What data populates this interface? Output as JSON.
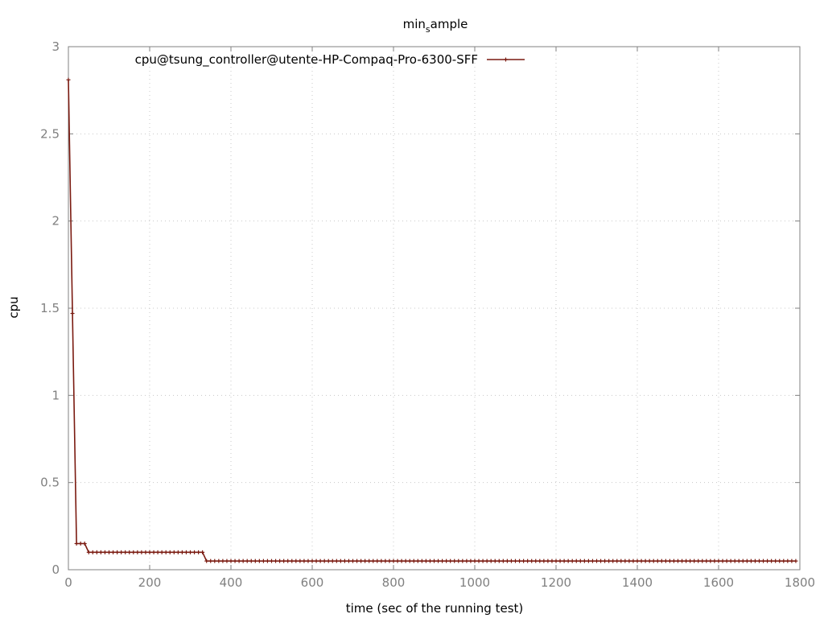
{
  "chart_data": {
    "type": "line",
    "title": "min",
    "title_subscript": "s",
    "title_suffix": "ample",
    "xlabel": "time (sec of the running test)",
    "ylabel": "cpu",
    "xlim": [
      0,
      1800
    ],
    "ylim": [
      0,
      3
    ],
    "xticks": [
      0,
      200,
      400,
      600,
      800,
      1000,
      1200,
      1400,
      1600,
      1800
    ],
    "yticks": [
      0,
      0.5,
      1,
      1.5,
      2,
      2.5,
      3
    ],
    "ytick_labels": [
      "0",
      "0.5",
      "1",
      "1.5",
      "2",
      "2.5",
      "3"
    ],
    "grid": true,
    "legend_position": "top-left",
    "series": [
      {
        "name": "cpu@tsung_controller@utente-HP-Compaq-Pro-6300-SFF",
        "color": "#7a1a10",
        "segments": [
          {
            "x_start": 0,
            "x_end": 0,
            "step": 10,
            "value": 2.81
          },
          {
            "x_start": 10,
            "x_end": 10,
            "step": 10,
            "value": 1.47
          },
          {
            "x_start": 20,
            "x_end": 40,
            "step": 10,
            "value": 0.15
          },
          {
            "x_start": 50,
            "x_end": 330,
            "step": 10,
            "value": 0.1
          },
          {
            "x_start": 340,
            "x_end": 1790,
            "step": 10,
            "value": 0.05
          }
        ]
      }
    ]
  }
}
